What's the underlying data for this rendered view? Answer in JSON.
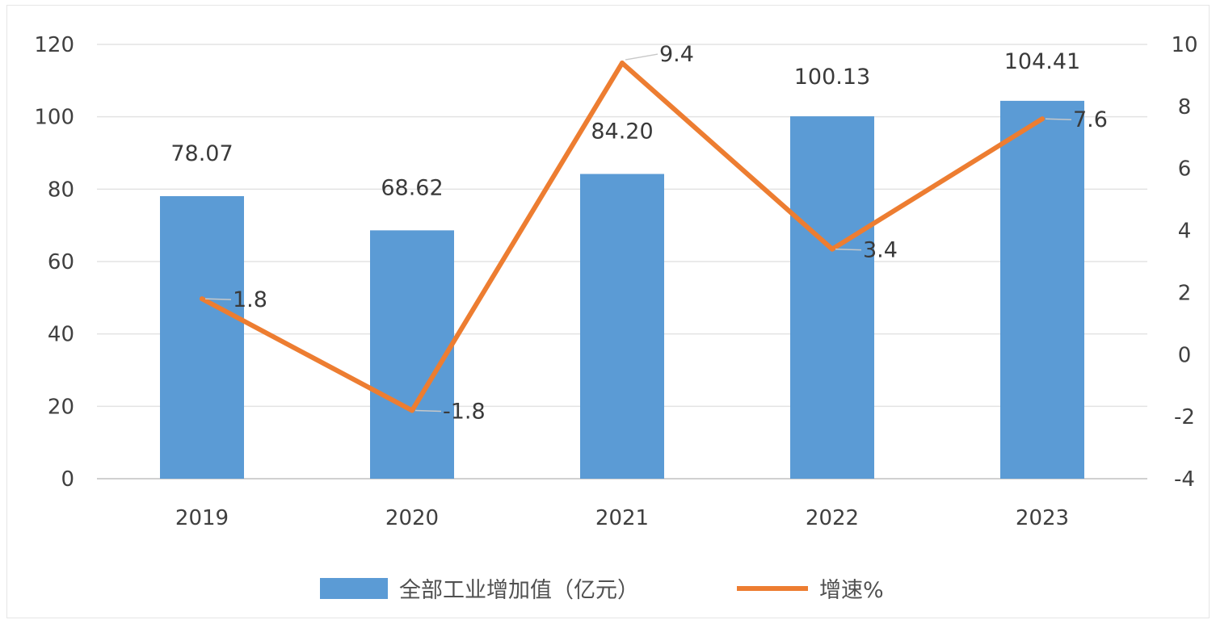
{
  "chart_data": {
    "type": "bar",
    "categories": [
      "2019",
      "2020",
      "2021",
      "2022",
      "2023"
    ],
    "series": [
      {
        "name": "全部工业增加值（亿元）",
        "type": "bar",
        "axis": "left",
        "color": "#5b9bd5",
        "values": [
          78.07,
          68.62,
          84.2,
          100.13,
          104.41
        ],
        "labels": [
          "78.07",
          "68.62",
          "84.20",
          "100.13",
          "104.41"
        ]
      },
      {
        "name": "增速%",
        "type": "line",
        "axis": "right",
        "color": "#ed7d31",
        "values": [
          1.8,
          -1.8,
          9.4,
          3.4,
          7.6
        ],
        "labels": [
          "1.8",
          "-1.8",
          "9.4",
          "3.4",
          "7.6"
        ]
      }
    ],
    "y_left": {
      "min": 0,
      "max": 120,
      "ticks": [
        0,
        20,
        40,
        60,
        80,
        100,
        120
      ]
    },
    "y_right": {
      "min": -4,
      "max": 10,
      "ticks": [
        -4,
        -2,
        0,
        2,
        4,
        6,
        8,
        10
      ]
    },
    "grid": true,
    "legend": "bottom-center"
  }
}
